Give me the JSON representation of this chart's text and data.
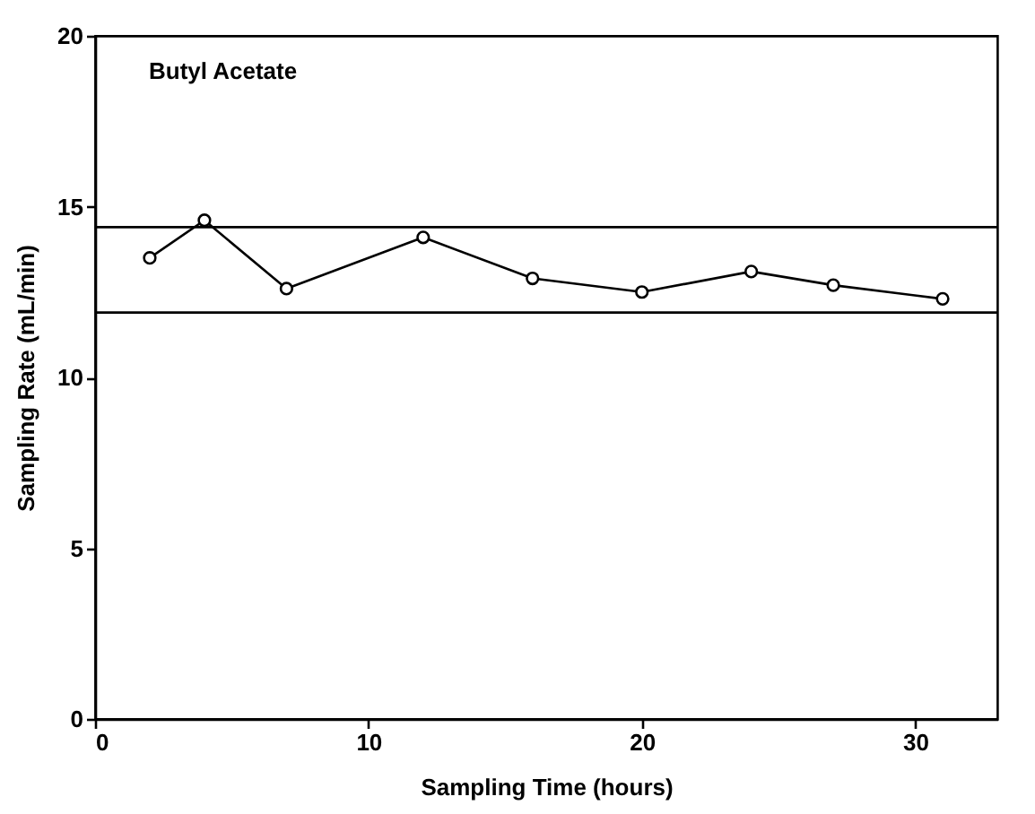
{
  "chart_data": {
    "type": "line",
    "xlabel": "Sampling Time (hours)",
    "ylabel": "Sampling Rate (mL/min)",
    "annotations": [
      "Butyl Acetate"
    ],
    "x": [
      2,
      4,
      7,
      12,
      16,
      20,
      24,
      27,
      31
    ],
    "series": [
      {
        "color": "#000000",
        "values": [
          13.5,
          14.6,
          12.6,
          14.1,
          12.9,
          12.5,
          13.1,
          12.7,
          12.3
        ]
      }
    ],
    "xlim": [
      0,
      33
    ],
    "xticks": [
      0,
      10,
      20,
      30
    ],
    "ylim": [
      0,
      20
    ],
    "yticks": [
      0,
      5,
      10,
      15,
      20
    ],
    "ref_lines": [
      {
        "axis": "y",
        "value": 14.4,
        "color": "#000000"
      },
      {
        "axis": "y",
        "value": 11.9,
        "color": "#000000"
      }
    ],
    "marker": "circle",
    "line_style": "solid",
    "grid": false
  }
}
